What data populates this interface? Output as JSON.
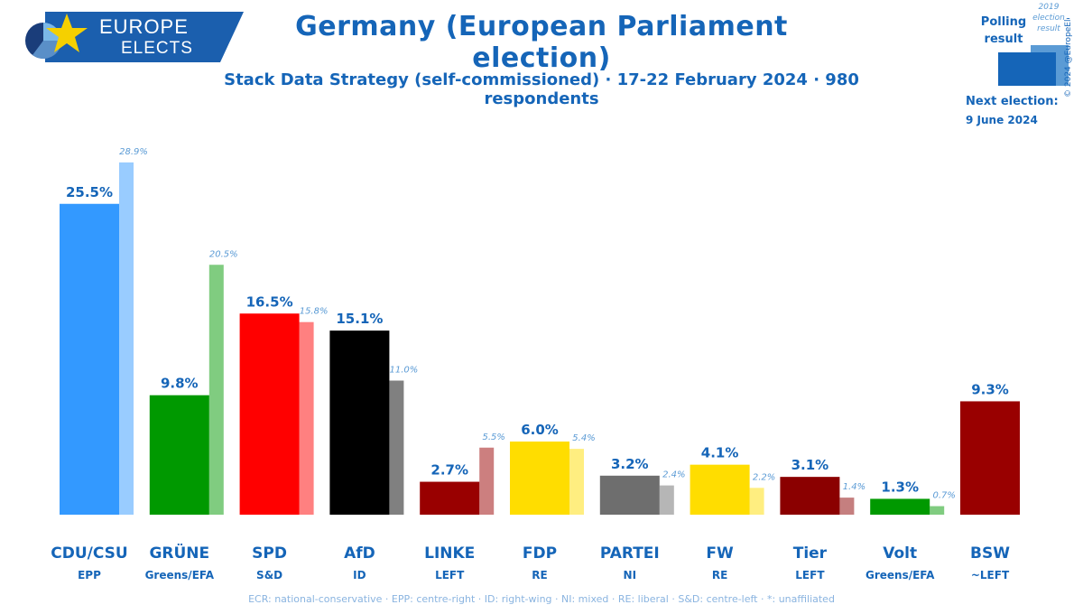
{
  "header": {
    "logo_line1": "EUROPE",
    "logo_line2": "ELECTS",
    "title": "Germany (European Parliament election)",
    "subtitle": "Stack Data Strategy (self-commissioned) · 17-22 February 2024 · 980 respondents"
  },
  "legend": {
    "polling_label": "Polling result",
    "previous_label": "2019 election result",
    "next_election_label": "Next election:",
    "next_election_date": "9 June 2024",
    "copyright": "© 2024 @EuropeElects"
  },
  "footnote": "ECR: national-conservative · EPP: centre-right · ID: right-wing · NI: mixed · RE: liberal · S&D: centre-left · *: unaffiliated",
  "colors": {
    "brand": "#1565b8",
    "logo_bg": "#1b5fae"
  },
  "chart_data": {
    "type": "bar",
    "title": "Germany (European Parliament election)",
    "ylim": [
      0,
      30
    ],
    "categories": [
      "CDU/CSU",
      "GRÜNE",
      "SPD",
      "AfD",
      "LINKE",
      "FDP",
      "PARTEI",
      "FW",
      "Tier",
      "Volt",
      "BSW"
    ],
    "groups": [
      "EPP",
      "Greens/EFA",
      "S&D",
      "ID",
      "LEFT",
      "RE",
      "NI",
      "RE",
      "LEFT",
      "Greens/EFA",
      "~LEFT"
    ],
    "series": [
      {
        "name": "Polling result",
        "values": [
          25.5,
          9.8,
          16.5,
          15.1,
          2.7,
          6.0,
          3.2,
          4.1,
          3.1,
          1.3,
          9.3
        ],
        "labels": [
          "25.5%",
          "9.8%",
          "16.5%",
          "15.1%",
          "2.7%",
          "6.0%",
          "3.2%",
          "4.1%",
          "3.1%",
          "1.3%",
          "9.3%"
        ],
        "colors": [
          "#3399ff",
          "#009900",
          "#ff0000",
          "#000000",
          "#990000",
          "#ffdd00",
          "#6e6e6e",
          "#ffdd00",
          "#8b0000",
          "#009900",
          "#990000"
        ]
      },
      {
        "name": "2019 election result",
        "values": [
          28.9,
          20.5,
          15.8,
          11.0,
          5.5,
          5.4,
          2.4,
          2.2,
          1.4,
          0.7,
          null
        ],
        "labels": [
          "28.9%",
          "20.5%",
          "15.8%",
          "11.0%",
          "5.5%",
          "5.4%",
          "2.4%",
          "2.2%",
          "1.4%",
          "0.7%",
          ""
        ],
        "colors": [
          "#99ccff",
          "#80cc80",
          "#ff8080",
          "#808080",
          "#cc7f7f",
          "#ffee80",
          "#b6b6b6",
          "#ffee80",
          "#c57f7f",
          "#80cc80",
          "#cc7f7f"
        ]
      }
    ]
  }
}
